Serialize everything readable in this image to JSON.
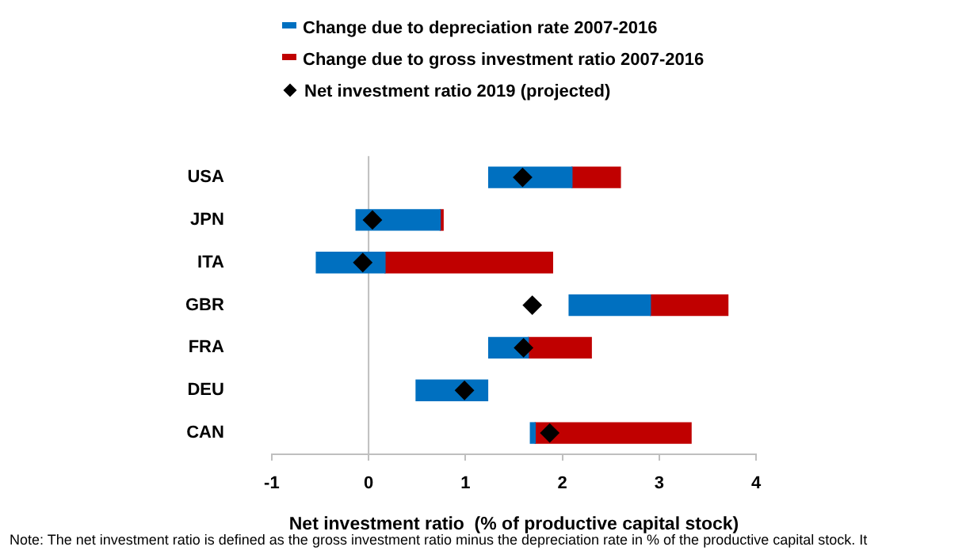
{
  "chart_data": {
    "type": "bar",
    "orientation": "horizontal",
    "xlabel": "Net investment ratio  (% of productive capital stock)",
    "categories": [
      "USA",
      "JPN",
      "ITA",
      "GBR",
      "FRA",
      "DEU",
      "CAN"
    ],
    "series": [
      {
        "name": "Change due to depreciation rate 2007-2016",
        "color": "#0070c0",
        "base": [
          2.1,
          0.74,
          0.17,
          2.91,
          1.65,
          1.23,
          1.72
        ],
        "values": [
          -0.86,
          -0.87,
          -0.71,
          -0.84,
          -0.41,
          -0.74,
          -0.05
        ]
      },
      {
        "name": "Change due to gross investment ratio 2007-2016",
        "color": "#c00000",
        "base": [
          2.1,
          0.74,
          0.17,
          2.91,
          1.65,
          null,
          1.72
        ],
        "values": [
          0.5,
          0.03,
          1.73,
          0.8,
          0.65,
          null,
          1.61
        ]
      },
      {
        "name": "Net investment ratio 2019 (projected)",
        "type": "scatter",
        "marker": "diamond",
        "color": "#000000",
        "values": [
          1.59,
          0.04,
          -0.06,
          1.69,
          1.6,
          0.99,
          1.87
        ]
      }
    ],
    "xlim": [
      -1,
      4
    ],
    "xticks": [
      -1,
      0,
      1,
      2,
      3,
      4
    ],
    "grid": false,
    "ref_lines": [
      {
        "axis": "x",
        "value": 0,
        "color": "#bfbfbf"
      }
    ],
    "legend": "top",
    "annotations": [
      "Note: The net investment ratio is defined as the gross investment ratio minus the depreciation rate in % of the productive capital stock. It"
    ]
  }
}
